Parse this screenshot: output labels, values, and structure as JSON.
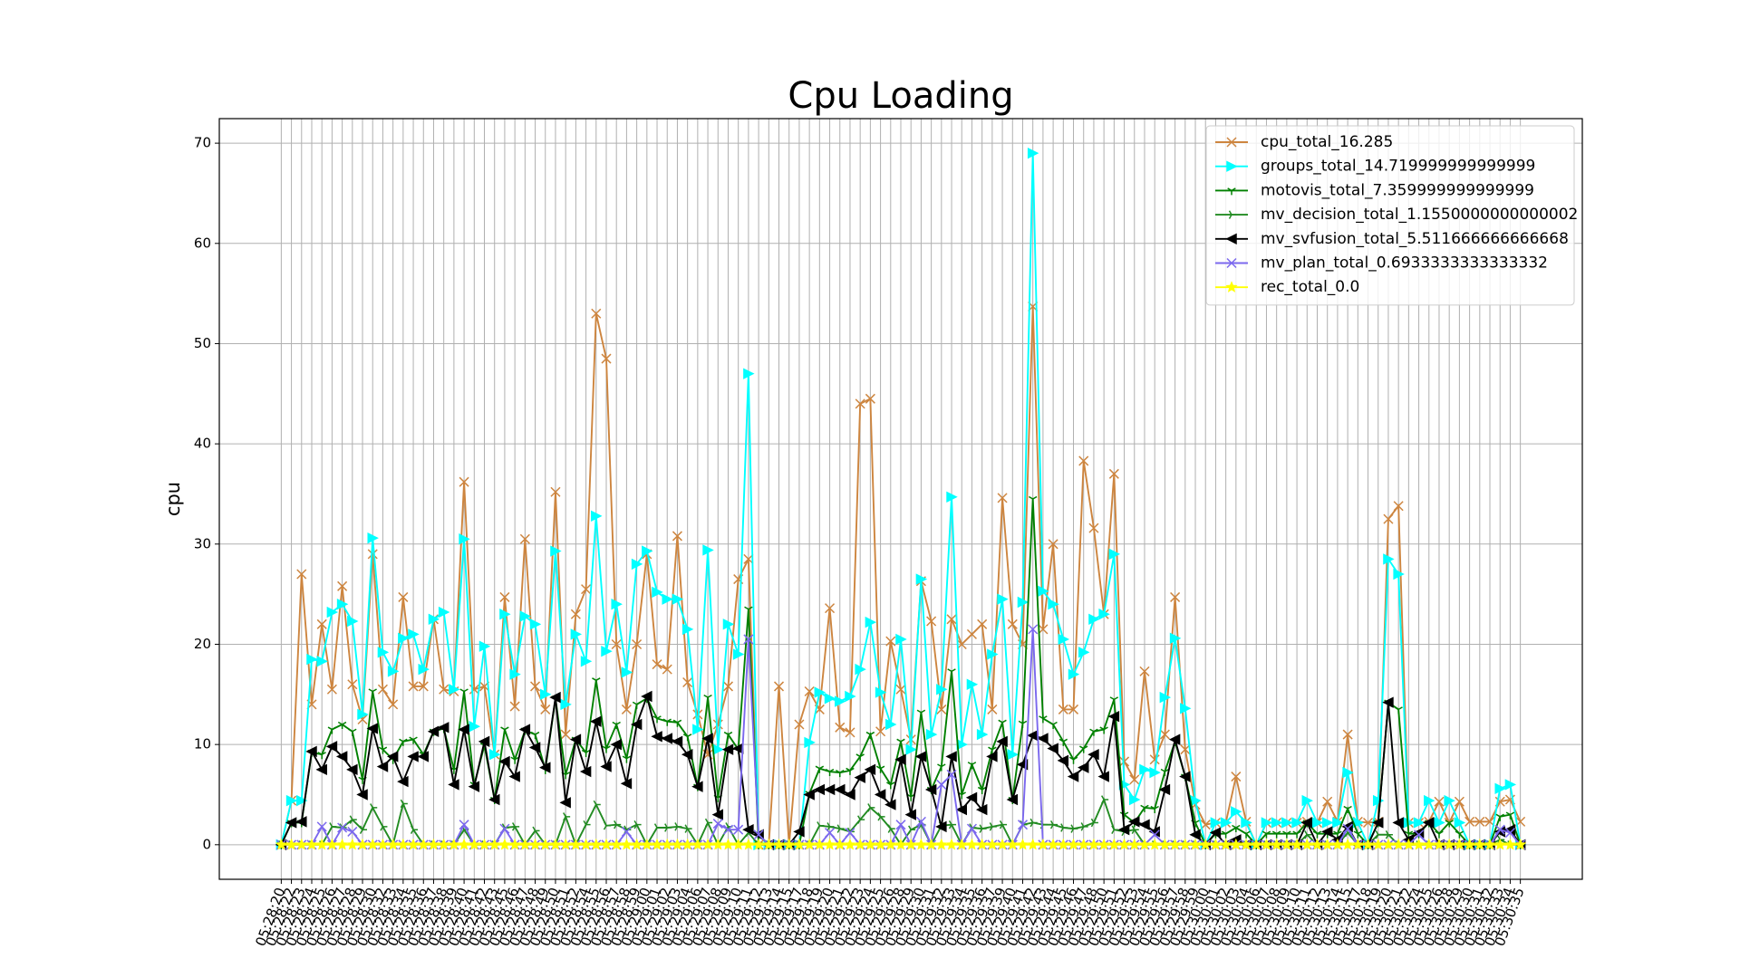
{
  "chart_data": {
    "type": "line",
    "title": "Cpu Loading",
    "y_label": "cpu",
    "categories": [
      "05:28:20",
      "05:28:22",
      "05:28:23",
      "05:28:24",
      "05:28:25",
      "05:28:26",
      "05:28:27",
      "05:28:28",
      "05:28:29",
      "05:28:30",
      "05:28:32",
      "05:28:33",
      "05:28:34",
      "05:28:35",
      "05:28:36",
      "05:28:37",
      "05:28:38",
      "05:28:39",
      "05:28:40",
      "05:28:41",
      "05:28:42",
      "05:28:43",
      "05:28:45",
      "05:28:46",
      "05:28:47",
      "05:28:48",
      "05:28:49",
      "05:28:50",
      "05:28:51",
      "05:28:52",
      "05:28:54",
      "05:28:55",
      "05:28:56",
      "05:28:57",
      "05:28:58",
      "05:28:59",
      "05:29:00",
      "05:29:01",
      "05:29:02",
      "05:29:03",
      "05:29:04",
      "05:29:06",
      "05:29:07",
      "05:29:08",
      "05:29:09",
      "05:29:10",
      "05:29:11",
      "05:29:12",
      "05:29:13",
      "05:29:14",
      "05:29:15",
      "05:29:17",
      "05:29:18",
      "05:29:19",
      "05:29:20",
      "05:29:21",
      "05:29:22",
      "05:29:23",
      "05:29:24",
      "05:29:25",
      "05:29:26",
      "05:29:28",
      "05:29:29",
      "05:29:30",
      "05:29:31",
      "05:29:32",
      "05:29:33",
      "05:29:34",
      "05:29:35",
      "05:29:36",
      "05:29:37",
      "05:29:39",
      "05:29:40",
      "05:29:41",
      "05:29:42",
      "05:29:43",
      "05:29:44",
      "05:29:45",
      "05:29:46",
      "05:29:47",
      "05:29:48",
      "05:29:50",
      "05:29:51",
      "05:29:52",
      "05:29:53",
      "05:29:54",
      "05:29:55",
      "05:29:56",
      "05:29:57",
      "05:29:58",
      "05:29:59",
      "05:30:00",
      "05:30:01",
      "05:30:02",
      "05:30:03",
      "05:30:04",
      "05:30:06",
      "05:30:07",
      "05:30:08",
      "05:30:09",
      "05:30:10",
      "05:30:11",
      "05:30:12",
      "05:30:13",
      "05:30:14",
      "05:30:15",
      "05:30:17",
      "05:30:18",
      "05:30:19",
      "05:30:20",
      "05:30:21",
      "05:30:22",
      "05:30:24",
      "05:30:25",
      "05:30:26",
      "05:30:28",
      "05:30:29",
      "05:30:30",
      "05:30:31",
      "05:30:32",
      "05:30:33",
      "05:30:34",
      "05:30:35"
    ],
    "series": [
      {
        "name": "cpu_total_16.285",
        "color": "#cd853f",
        "marker": "x",
        "values": [
          0,
          4.4,
          27,
          14,
          22,
          15.5,
          25.8,
          16,
          12.5,
          29,
          15.5,
          14,
          24.7,
          15.8,
          15.8,
          22.5,
          15.5,
          15.3,
          36.2,
          15.5,
          15.8,
          9,
          24.7,
          13.8,
          30.5,
          15.8,
          13.5,
          35.2,
          11,
          23,
          25.5,
          53,
          48.5,
          20,
          13.5,
          20,
          29,
          18,
          17.5,
          30.8,
          16.2,
          13,
          9,
          12,
          15.8,
          26.5,
          28.5,
          0,
          0,
          15.8,
          0,
          12,
          15.3,
          13.5,
          23.6,
          11.7,
          11.2,
          44,
          44.5,
          11.3,
          20.3,
          15.5,
          10.5,
          26.3,
          22.3,
          13.5,
          22.5,
          20,
          21,
          22,
          13.5,
          34.6,
          22,
          20,
          53.7,
          21.5,
          30,
          13.5,
          13.5,
          38.3,
          31.6,
          23,
          37,
          8.3,
          6.5,
          17.3,
          8.5,
          11,
          24.7,
          9.5,
          4,
          2,
          2.2,
          2.2,
          6.8,
          2.3,
          0,
          2.2,
          2.2,
          2.2,
          2.2,
          2.3,
          2.2,
          4.3,
          2.3,
          11,
          2.3,
          2.2,
          2.3,
          32.5,
          33.8,
          2.2,
          2.2,
          2.3,
          4.3,
          2.2,
          4.3,
          2.3,
          2.3,
          2.3,
          4.3,
          4.5,
          2.3
        ]
      },
      {
        "name": "groups_total_14.719999999999999",
        "color": "#00ffff",
        "marker": ">",
        "values": [
          0,
          4.4,
          4.4,
          18.5,
          18.3,
          23.2,
          24,
          22.3,
          13,
          30.6,
          19.2,
          17.3,
          20.6,
          21,
          17.5,
          22.5,
          23.2,
          15.5,
          30.5,
          11.8,
          19.8,
          9,
          23,
          17,
          22.8,
          22,
          15,
          29.3,
          14,
          21,
          18.3,
          32.8,
          19.3,
          24,
          17.2,
          28,
          29.3,
          25.2,
          24.5,
          24.5,
          21.5,
          11.5,
          29.4,
          9.5,
          22,
          19,
          47,
          0,
          0,
          0,
          0,
          0,
          10.2,
          15.2,
          14.6,
          14.3,
          14.8,
          17.5,
          22.2,
          15.2,
          12,
          20.5,
          9.5,
          26.5,
          11,
          15.5,
          34.7,
          10,
          16,
          11,
          19,
          24.5,
          9,
          24.2,
          69,
          25.3,
          24,
          20.5,
          17,
          19.2,
          22.5,
          23,
          29,
          6,
          4.5,
          7.5,
          7.2,
          14.7,
          20.6,
          13.6,
          4.4,
          0,
          2.2,
          2.2,
          3.3,
          2.2,
          0,
          2.2,
          2.2,
          2.2,
          2.2,
          4.4,
          2.2,
          2.2,
          2.2,
          7.2,
          2.2,
          0,
          4.4,
          28.5,
          27,
          2.2,
          2.2,
          4.4,
          2.2,
          4.4,
          2.2,
          0,
          0,
          0,
          5.6,
          6,
          0
        ]
      },
      {
        "name": "motovis_total_7.359999999999999",
        "color": "#008000",
        "marker": "1",
        "values": [
          0,
          2.2,
          2.2,
          9.2,
          9,
          11.5,
          12,
          11.3,
          6.5,
          15.3,
          9.5,
          8.5,
          10.3,
          10.5,
          9,
          11.3,
          11.6,
          7.5,
          15.3,
          6,
          9.9,
          4.5,
          11.5,
          8.5,
          11.4,
          11,
          7.5,
          14.6,
          7,
          10.5,
          9.2,
          16.4,
          9.6,
          12,
          8.6,
          14,
          14.6,
          12.6,
          12.3,
          12.2,
          10.8,
          5.8,
          14.7,
          4.7,
          11,
          9.5,
          23.5,
          0,
          0,
          0,
          0,
          0,
          5.1,
          7.6,
          7.3,
          7.2,
          7.4,
          8.8,
          11,
          7.6,
          6,
          10.3,
          4.8,
          13.2,
          5.5,
          7.8,
          17.3,
          5,
          8,
          5.5,
          9.5,
          12.2,
          4.5,
          12.1,
          34.5,
          12.6,
          12,
          10.3,
          8.5,
          9.6,
          11.3,
          11.5,
          14.5,
          3,
          2.2,
          3.7,
          3.6,
          7.3,
          10.3,
          6.8,
          2.2,
          0,
          1.1,
          1.1,
          1.7,
          1.1,
          0,
          1.1,
          1.1,
          1.1,
          1.1,
          2.2,
          1.1,
          1.1,
          1.1,
          3.6,
          1.1,
          0,
          2.2,
          14.2,
          13.5,
          1.1,
          1.1,
          2.2,
          1.1,
          2.2,
          1.1,
          0,
          0,
          0,
          2.8,
          3,
          0
        ]
      },
      {
        "name": "mv_decision_total_1.1550000000000002",
        "color": "#228b22",
        "marker": "4",
        "values": [
          0,
          0,
          0,
          0,
          0,
          1.8,
          1.7,
          2.5,
          1.5,
          3.7,
          1.8,
          0,
          4.1,
          1.5,
          0,
          0,
          0,
          0,
          1.5,
          0,
          0,
          0,
          1.7,
          1.8,
          0,
          1.4,
          0,
          0,
          2.8,
          0,
          2,
          4,
          1.9,
          2,
          1.5,
          2,
          0,
          1.7,
          1.7,
          1.8,
          1.6,
          0,
          2.2,
          0,
          1.8,
          0,
          1.2,
          0,
          0,
          0,
          0,
          0,
          0,
          1.9,
          1.8,
          1.6,
          1.3,
          2.5,
          3.7,
          2.8,
          1.6,
          0,
          1.5,
          2,
          0,
          1.9,
          2,
          0,
          1.7,
          1.6,
          1.8,
          2,
          0,
          2,
          2.2,
          2,
          2,
          1.7,
          1.6,
          1.8,
          2.2,
          4.5,
          1.5,
          1.3,
          1.5,
          0,
          0,
          0,
          0,
          0,
          0,
          0,
          0,
          0,
          0,
          0,
          0,
          0,
          0,
          0,
          0,
          1,
          0,
          0,
          0,
          1.2,
          0,
          0,
          1,
          1,
          0,
          0,
          0,
          0,
          0,
          0,
          0,
          0,
          0,
          0,
          0.5,
          0,
          0
        ]
      },
      {
        "name": "mv_svfusion_total_5.511666666666668",
        "color": "#000000",
        "marker": "<",
        "values": [
          0,
          2.2,
          2.3,
          9.3,
          7.5,
          9.8,
          8.8,
          7.5,
          5,
          11.6,
          7.8,
          8.8,
          6.3,
          8.8,
          8.8,
          11.3,
          11.7,
          6,
          11.5,
          5.8,
          10.3,
          4.5,
          8.3,
          6.8,
          11.5,
          9.7,
          7.7,
          14.7,
          4.2,
          10.5,
          7.3,
          12.3,
          7.8,
          10,
          6.1,
          12,
          14.8,
          10.8,
          10.6,
          10.3,
          9,
          5.8,
          10.6,
          3,
          9.5,
          9.6,
          1.5,
          1,
          0,
          0,
          0,
          1.3,
          5,
          5.5,
          5.5,
          5.5,
          5,
          6.7,
          7.5,
          5,
          4,
          8.5,
          3,
          8.8,
          5.5,
          1.8,
          8.8,
          3.5,
          4.7,
          3.5,
          8.8,
          10.3,
          4.5,
          8,
          10.9,
          10.6,
          9.6,
          8.4,
          6.8,
          7.7,
          9,
          6.8,
          12.8,
          1.5,
          2.3,
          2,
          1.3,
          5.5,
          10.5,
          6.8,
          1,
          0,
          1.2,
          0,
          0.5,
          0,
          0,
          0,
          0,
          0,
          0,
          2.2,
          0,
          1.3,
          0.5,
          1.8,
          0,
          0,
          2.2,
          14.2,
          2.2,
          0.5,
          1.2,
          2.2,
          0,
          0,
          0,
          0,
          0,
          0,
          1.3,
          1.5,
          0
        ]
      },
      {
        "name": "mv_plan_total_0.6933333333333332",
        "color": "#7b68ee",
        "marker": "x",
        "values": [
          0,
          0,
          0,
          0,
          1.8,
          0,
          1.7,
          1.3,
          0,
          0,
          0,
          0,
          0,
          0,
          0,
          0,
          0,
          0,
          2,
          0,
          0,
          0,
          1.6,
          0,
          0,
          0,
          0,
          0,
          0,
          0,
          0,
          0,
          0,
          0,
          1.3,
          0,
          0,
          0,
          0,
          0,
          0,
          0,
          0,
          2.1,
          1.5,
          1.5,
          20.5,
          1,
          0,
          0,
          0,
          0,
          0,
          0,
          1.2,
          0,
          1.2,
          0,
          0,
          0,
          0,
          2,
          0,
          2.3,
          0,
          6,
          7,
          0,
          1.6,
          0,
          0,
          0,
          0,
          2,
          21.5,
          0,
          0,
          0,
          0,
          0,
          0,
          0,
          0,
          0,
          0,
          0,
          1,
          0,
          0,
          0,
          0,
          0,
          0,
          0,
          0,
          0,
          0,
          0,
          0,
          0,
          0,
          0,
          0,
          0,
          0,
          1.6,
          0,
          0,
          0,
          0,
          0,
          0,
          1,
          0,
          0,
          0,
          0,
          0,
          0,
          0,
          1.5,
          1.2,
          0
        ]
      },
      {
        "name": "rec_total_0.0",
        "color": "#ffff00",
        "marker": "*",
        "values": [
          0,
          0,
          0,
          0,
          0,
          0,
          0,
          0,
          0,
          0,
          0,
          0,
          0,
          0,
          0,
          0,
          0,
          0,
          0,
          0,
          0,
          0,
          0,
          0,
          0,
          0,
          0,
          0,
          0,
          0,
          0,
          0,
          0,
          0,
          0,
          0,
          0,
          0,
          0,
          0,
          0,
          0,
          0,
          0,
          0,
          0,
          0,
          0,
          0,
          0,
          0,
          0,
          0,
          0,
          0,
          0,
          0,
          0,
          0,
          0,
          0,
          0,
          0,
          0,
          0,
          0,
          0,
          0,
          0,
          0,
          0,
          0,
          0,
          0,
          0,
          0,
          0,
          0,
          0,
          0,
          0,
          0,
          0,
          0,
          0,
          0,
          0,
          0,
          0,
          0,
          0,
          0,
          0,
          0,
          0,
          0,
          0,
          0,
          0,
          0,
          0,
          0,
          0,
          0,
          0,
          0,
          0,
          0,
          0,
          0,
          0,
          0,
          0,
          0,
          0,
          0,
          0,
          0,
          0,
          0,
          0,
          0,
          0
        ]
      }
    ],
    "ylim": [
      -3.45,
      72.45
    ],
    "yticks": [
      0,
      10,
      20,
      30,
      40,
      50,
      60,
      70
    ],
    "grid": true,
    "legend": "upper right"
  }
}
